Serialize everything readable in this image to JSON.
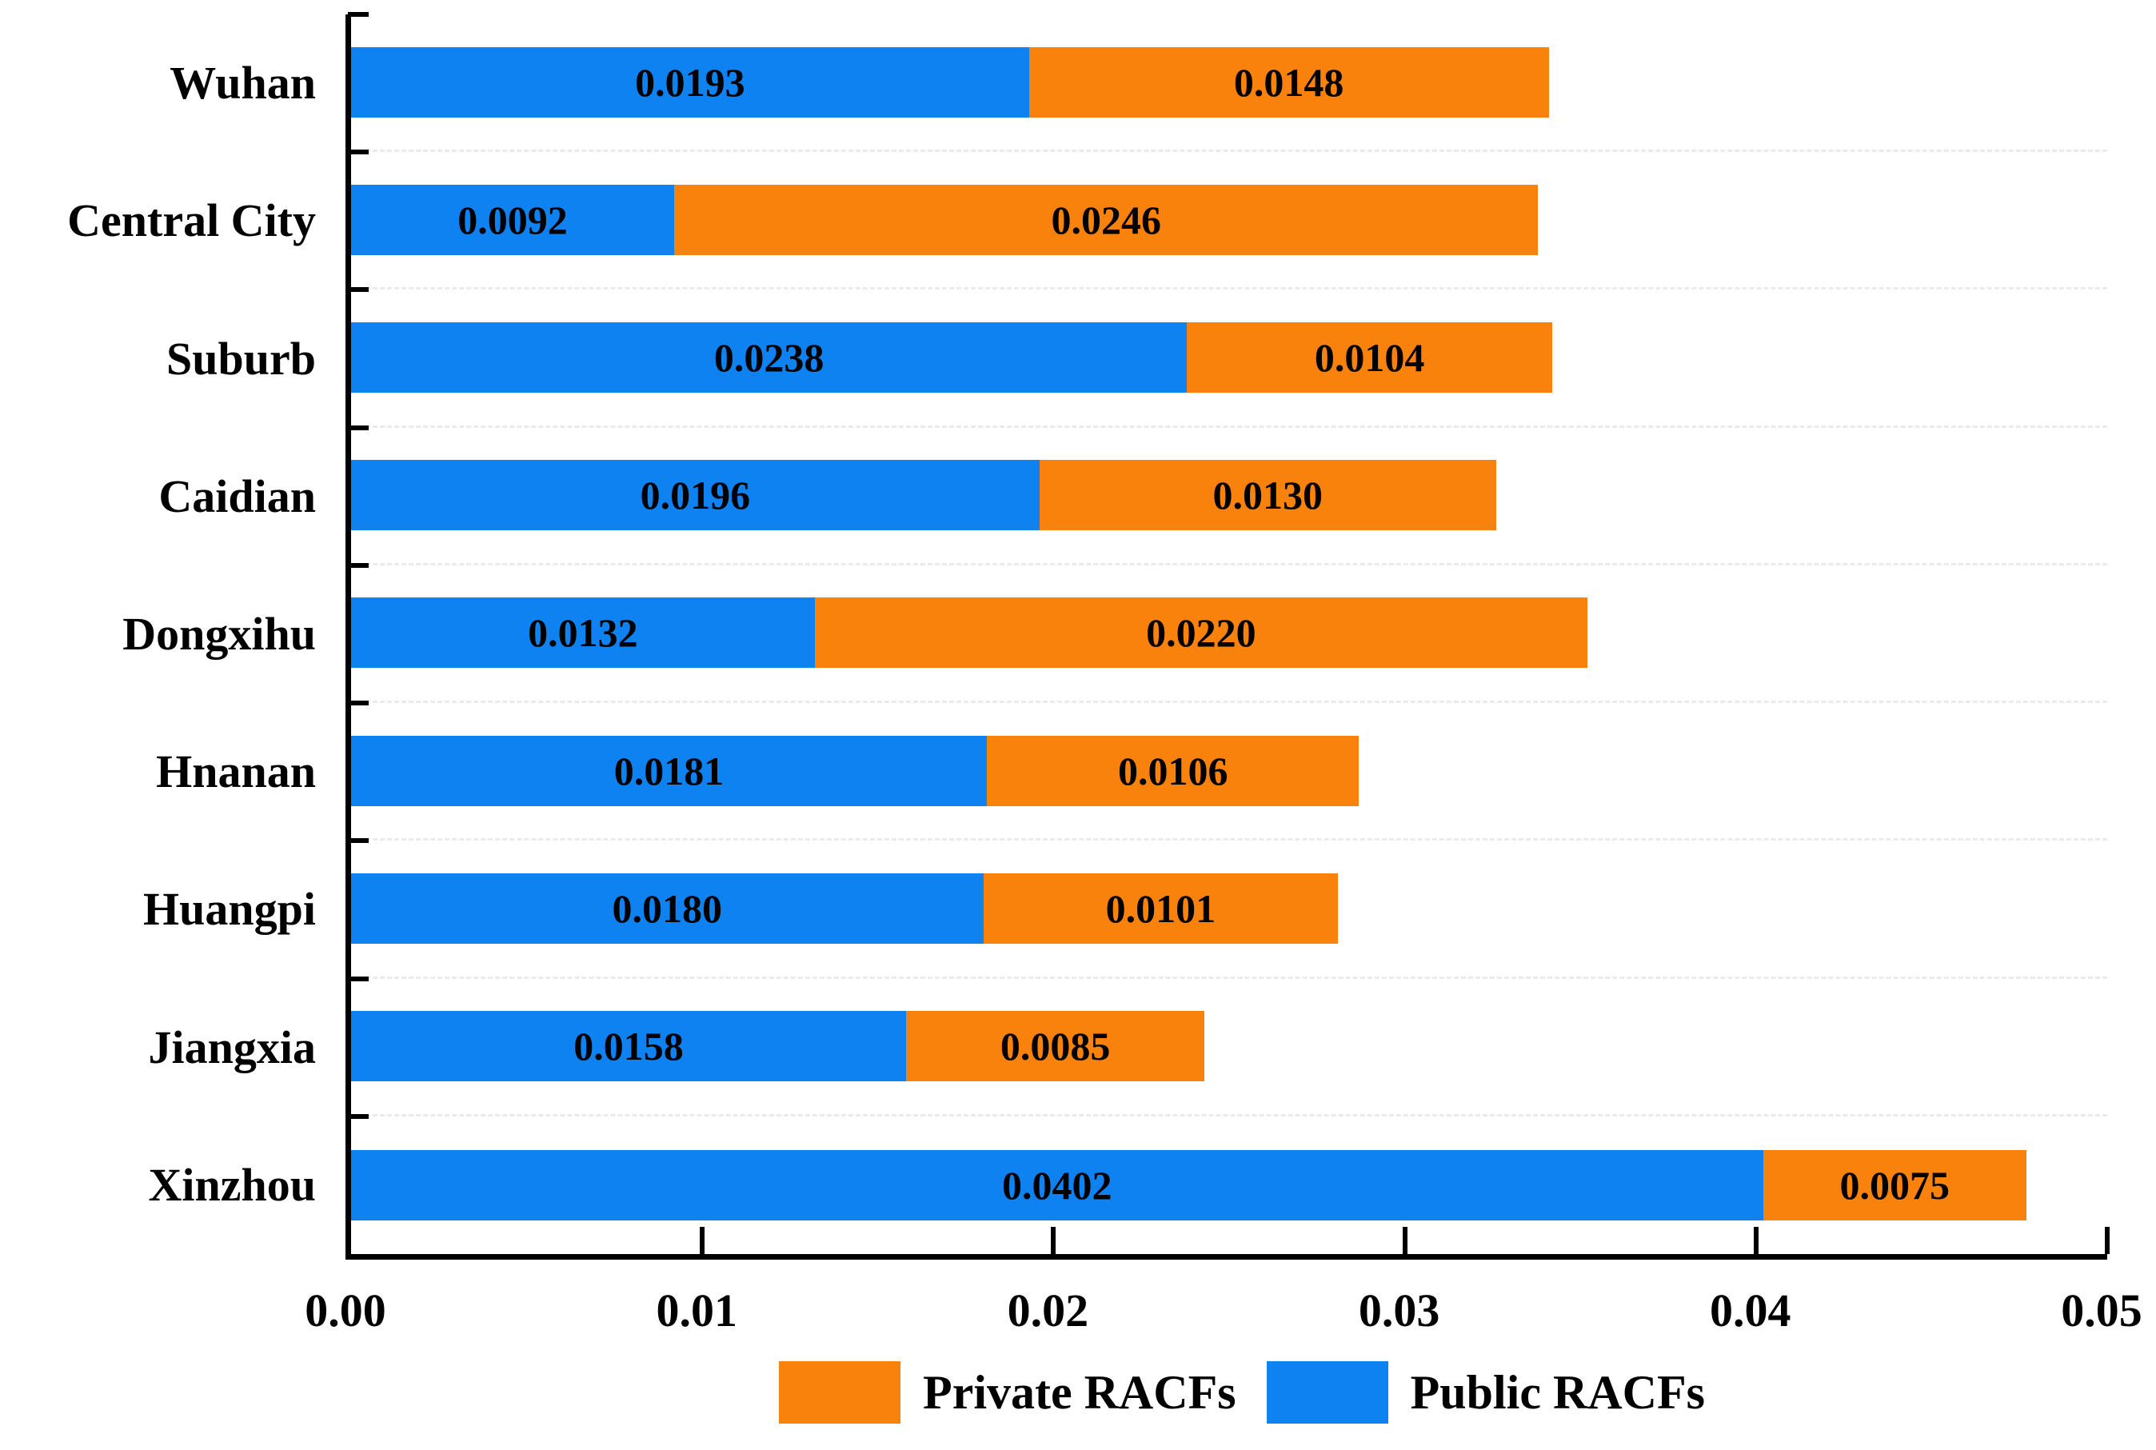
{
  "chart_data": {
    "type": "bar",
    "orientation": "horizontal",
    "stacked": true,
    "title": "",
    "xlabel": "",
    "ylabel": "",
    "categories": [
      "Wuhan",
      "Central City",
      "Suburb",
      "Caidian",
      "Dongxihu",
      "Hnanan",
      "Huangpi",
      "Jiangxia",
      "Xinzhou"
    ],
    "series": [
      {
        "name": "Public RACFs",
        "color": "#0e82f0",
        "values": [
          0.0193,
          0.0092,
          0.0238,
          0.0196,
          0.0132,
          0.0181,
          0.018,
          0.0158,
          0.0402
        ],
        "labels": [
          "0.0193",
          "0.0092",
          "0.0238",
          "0.0196",
          "0.0132",
          "0.0181",
          "0.0180",
          "0.0158",
          "0.0402"
        ]
      },
      {
        "name": "Private RACFs",
        "color": "#f8820b",
        "values": [
          0.0148,
          0.0246,
          0.0104,
          0.013,
          0.022,
          0.0106,
          0.0101,
          0.0085,
          0.0075
        ],
        "labels": [
          "0.0148",
          "0.0246",
          "0.0104",
          "0.0130",
          "0.0220",
          "0.0106",
          "0.0101",
          "0.0085",
          "0.0075"
        ]
      }
    ],
    "xlim": [
      0,
      0.05
    ],
    "x_ticks": [
      "0.00",
      "0.01",
      "0.02",
      "0.03",
      "0.04",
      "0.05"
    ],
    "grid": "dashed horizontal lines at category boundaries",
    "legend": {
      "position": "bottom",
      "entries": [
        {
          "label": "Private RACFs",
          "color": "#f8820b"
        },
        {
          "label": "Public RACFs",
          "color": "#0e82f0"
        }
      ]
    }
  },
  "colors": {
    "public_blue": "#0e82f0",
    "private_orange": "#f8820b",
    "axis_black": "#000000",
    "gridline_gray": "#ebebeb",
    "background": "#ffffff"
  }
}
